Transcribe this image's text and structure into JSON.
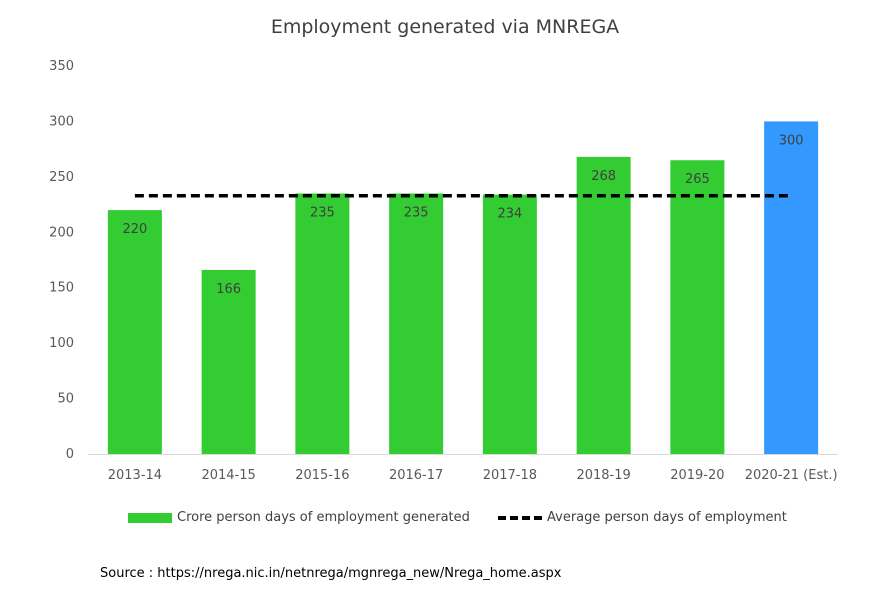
{
  "chart_data": {
    "type": "bar",
    "title": "Employment generated via MNREGA",
    "categories": [
      "2013-14",
      "2014-15",
      "2015-16",
      "2016-17",
      "2017-18",
      "2018-19",
      "2019-20",
      "2020-21 (Est.)"
    ],
    "series": [
      {
        "name": "Crore person days of employment generated",
        "values": [
          220,
          166,
          235,
          235,
          234,
          268,
          265,
          300
        ],
        "colors": [
          "#33cc33",
          "#33cc33",
          "#33cc33",
          "#33cc33",
          "#33cc33",
          "#33cc33",
          "#33cc33",
          "#3399ff"
        ]
      },
      {
        "name": "Average person days of employment",
        "type": "line",
        "style": "dashed",
        "color": "#000000",
        "values": [
          233,
          233,
          233,
          233,
          233,
          233,
          233,
          233
        ]
      }
    ],
    "data_labels": [
      "220",
      "166",
      "235",
      "235",
      "234",
      "268",
      "265",
      "300"
    ],
    "yticks": [
      "0",
      "50",
      "100",
      "150",
      "200",
      "250",
      "300",
      "350"
    ],
    "ylim": [
      0,
      350
    ],
    "grid": false,
    "legend_position": "bottom"
  },
  "source": "Source : https://nrega.nic.in/netnrega/mgnrega_new/Nrega_home.aspx"
}
